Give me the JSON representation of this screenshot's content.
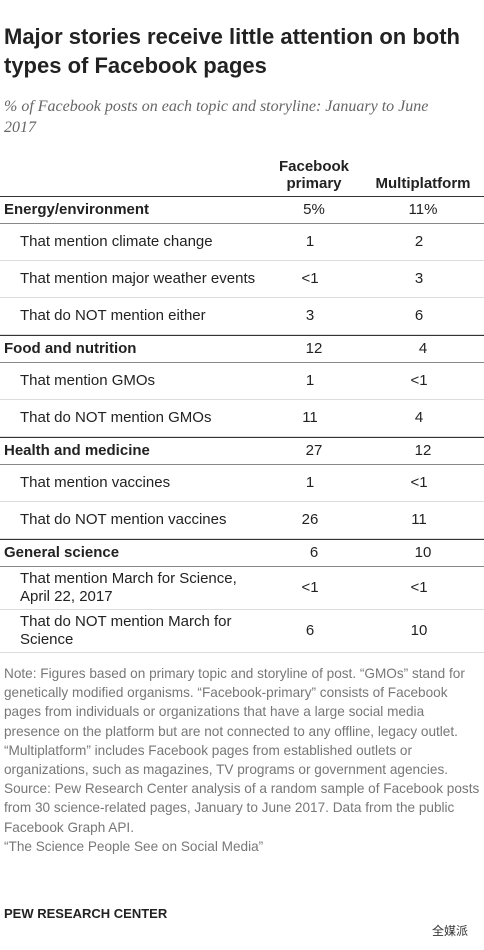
{
  "header": {
    "title": "Major stories receive little attention on both types of Facebook pages",
    "subtitle": "% of Facebook posts on each topic and storyline: January to  June 2017"
  },
  "table": {
    "columns": [
      "Facebook primary",
      "Multiplatform"
    ],
    "sections": [
      {
        "name": "Energy/environment",
        "values": [
          "5%",
          "11%"
        ],
        "rows": [
          {
            "label": "That mention climate change",
            "values": [
              "1",
              "2"
            ]
          },
          {
            "label": "That mention major weather events",
            "values": [
              "<1",
              "3"
            ]
          },
          {
            "label": "That do NOT mention either",
            "values": [
              "3",
              "6"
            ]
          }
        ]
      },
      {
        "name": "Food and nutrition",
        "values": [
          "12",
          "4"
        ],
        "rows": [
          {
            "label": "That mention GMOs",
            "values": [
              "1",
              "<1"
            ]
          },
          {
            "label": "That do NOT mention GMOs",
            "values": [
              "11",
              "4"
            ]
          }
        ]
      },
      {
        "name": "Health and medicine",
        "values": [
          "27",
          "12"
        ],
        "rows": [
          {
            "label": "That mention vaccines",
            "values": [
              "1",
              "<1"
            ]
          },
          {
            "label": "That do NOT mention vaccines",
            "values": [
              "26",
              "11"
            ]
          }
        ]
      },
      {
        "name": "General science",
        "values": [
          "6",
          "10"
        ],
        "rows": [
          {
            "label": "That mention March for Science, April 22, 2017",
            "values": [
              "<1",
              "<1"
            ]
          },
          {
            "label": "That do NOT mention March for Science",
            "values": [
              "6",
              "10"
            ]
          }
        ]
      }
    ]
  },
  "footer": {
    "note": "Note: Figures based on primary topic and storyline of post. “GMOs” stand for genetically modified organisms. “Facebook-primary” consists of Facebook pages from individuals or organizations that have a large social media presence on the platform but are not connected to any offline, legacy outlet. “Multiplatform” includes Facebook pages from established outlets or organizations, such as magazines, TV programs or government agencies.",
    "source": "Source: Pew Research Center analysis of a random sample of Facebook posts from 30 science-related pages, January to June 2017. Data from the public Facebook Graph API.",
    "report": "“The Science People See on Social Media”",
    "credit": "PEW RESEARCH CENTER",
    "watermark": "全媒派"
  }
}
